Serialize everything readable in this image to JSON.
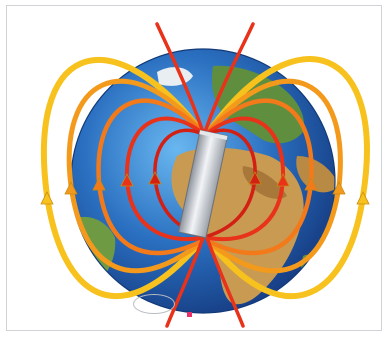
{
  "figure": {
    "title": "",
    "oval_label": "",
    "colors": {
      "ocean": "#2a6fc0",
      "land": "#c89a52",
      "field_line_outer": "#f7c21d",
      "field_line_inner": "#e8321a",
      "magnet": "#c9ced6",
      "marker": "#e8306a"
    },
    "icons": [
      "earth-globe",
      "bar-magnet",
      "field-line-arrow"
    ]
  }
}
